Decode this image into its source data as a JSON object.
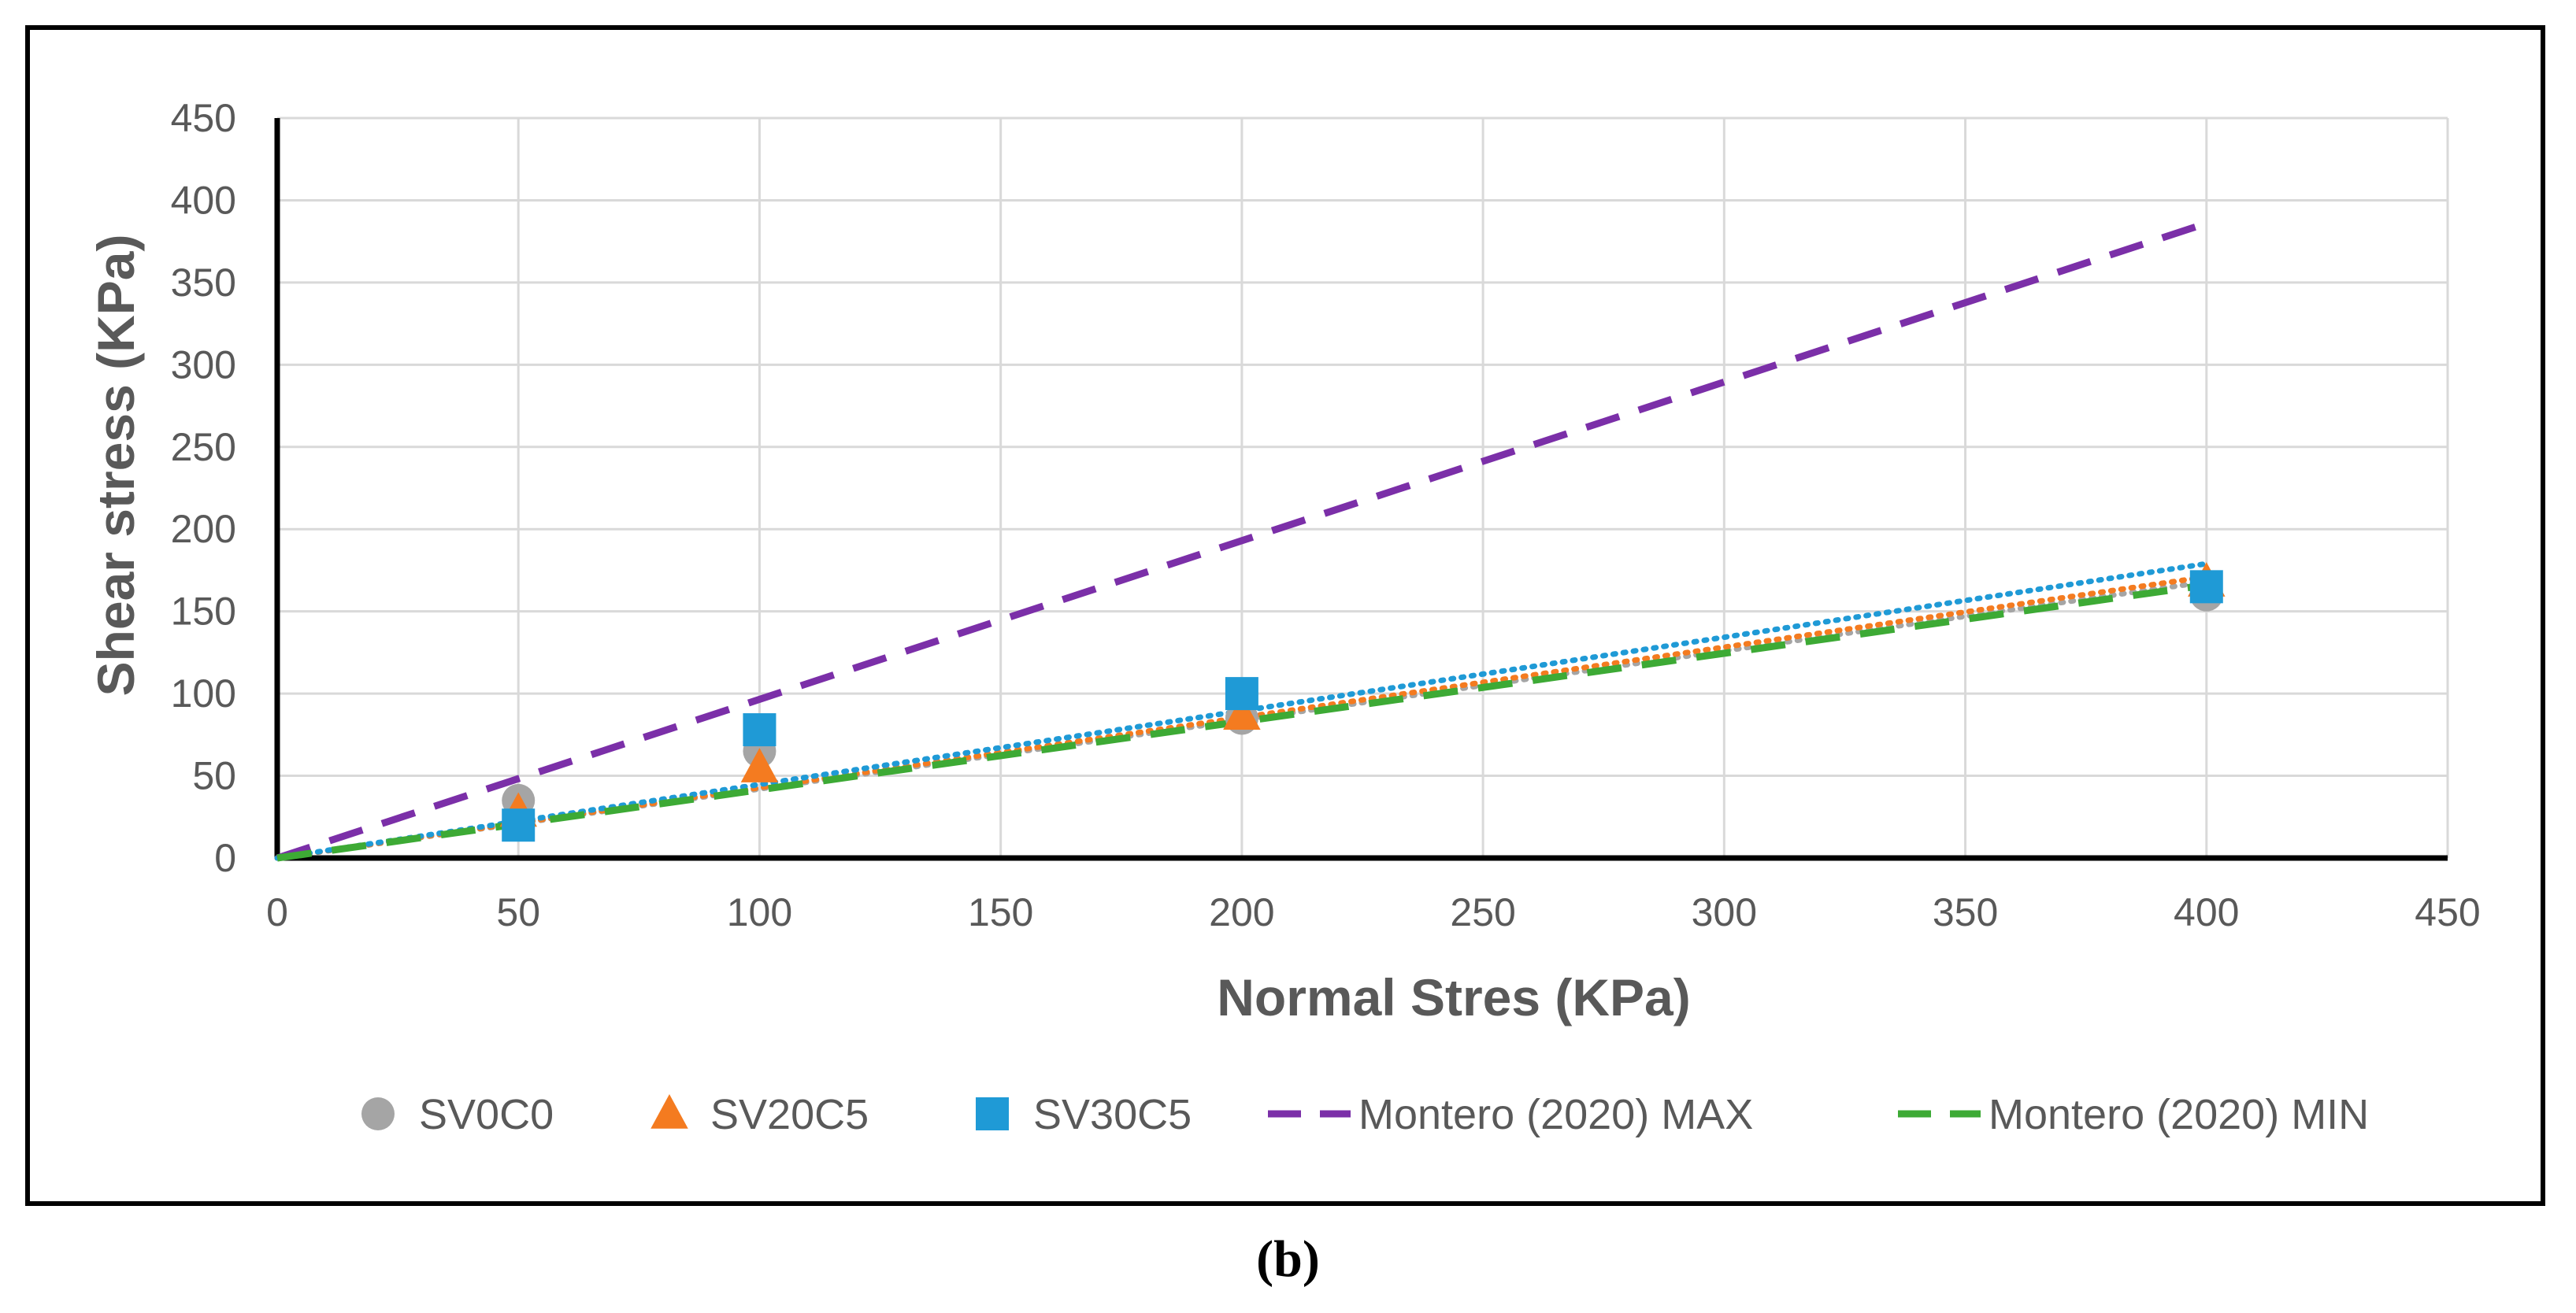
{
  "caption": "(b)",
  "chart_data": {
    "type": "scatter",
    "xlabel": "Normal Stres (KPa)",
    "ylabel": "Shear stress (KPa)",
    "xlim": [
      0,
      450
    ],
    "ylim": [
      0,
      450
    ],
    "xticks": [
      0,
      50,
      100,
      150,
      200,
      250,
      300,
      350,
      400,
      450
    ],
    "yticks": [
      0,
      50,
      100,
      150,
      200,
      250,
      300,
      350,
      400,
      450
    ],
    "grid": true,
    "legend_position": "bottom",
    "series": [
      {
        "name": "SV0C0",
        "kind": "markers",
        "marker": "circle",
        "color": "#a5a5a5",
        "x": [
          50,
          100,
          200,
          400
        ],
        "y": [
          35,
          65,
          85,
          160
        ],
        "trendline": {
          "style": "dotted",
          "from": [
            0,
            0
          ],
          "to": [
            400,
            168
          ]
        }
      },
      {
        "name": "SV20C5",
        "kind": "markers",
        "marker": "triangle",
        "color": "#f47b20",
        "x": [
          50,
          100,
          200,
          400
        ],
        "y": [
          28,
          55,
          87,
          168
        ],
        "trendline": {
          "style": "dotted",
          "from": [
            0,
            0
          ],
          "to": [
            400,
            171
          ]
        }
      },
      {
        "name": "SV30C5",
        "kind": "markers",
        "marker": "square",
        "color": "#1f9ad6",
        "x": [
          50,
          100,
          200,
          400
        ],
        "y": [
          20,
          78,
          100,
          165
        ],
        "trendline": {
          "style": "dotted",
          "from": [
            0,
            0
          ],
          "to": [
            400,
            179
          ]
        }
      },
      {
        "name": "Montero (2020) MAX",
        "kind": "line",
        "dash": "long-dash",
        "color": "#7b2fa8",
        "x": [
          0,
          400
        ],
        "y": [
          0,
          386
        ]
      },
      {
        "name": "Montero (2020) MIN",
        "kind": "line",
        "dash": "long-dash",
        "color": "#3daa35",
        "x": [
          0,
          400
        ],
        "y": [
          0,
          166
        ]
      }
    ]
  }
}
